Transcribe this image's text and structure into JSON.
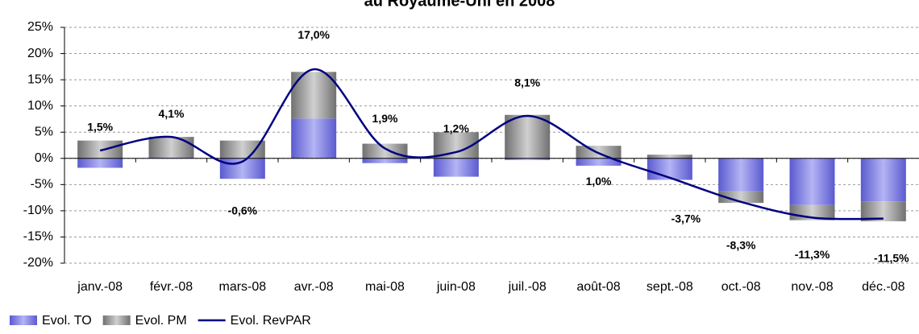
{
  "chart_data": {
    "type": "bar_line",
    "title": "au Royaume-Uni en 2008",
    "categories": [
      "janv.-08",
      "févr.-08",
      "mars-08",
      "avr.-08",
      "mai-08",
      "juin-08",
      "juil.-08",
      "août-08",
      "sept.-08",
      "oct.-08",
      "nov.-08",
      "déc.-08"
    ],
    "series": [
      {
        "name": "Evol. TO",
        "color": "#8c8ce8",
        "kind": "bar",
        "values": [
          -1.8,
          0.2,
          -3.9,
          7.6,
          -0.9,
          -3.5,
          -0.3,
          -1.4,
          -4.1,
          -6.3,
          -8.9,
          -8.2
        ]
      },
      {
        "name": "Evol. PM",
        "color": "#a6a6a6",
        "kind": "bar",
        "values": [
          3.4,
          3.9,
          3.4,
          8.9,
          2.8,
          5.0,
          8.3,
          2.4,
          0.7,
          -2.2,
          -2.9,
          -3.8
        ]
      },
      {
        "name": "Evol. RevPAR",
        "color": "#000080",
        "kind": "line",
        "values": [
          1.5,
          4.1,
          -0.6,
          17.0,
          1.9,
          1.2,
          8.1,
          1.0,
          -3.7,
          -8.3,
          -11.3,
          -11.5
        ],
        "value_labels": [
          "1,5%",
          "4,1%",
          "-0,6%",
          "17,0%",
          "1,9%",
          "1,2%",
          "8,1%",
          "1,0%",
          "-3,7%",
          "-8,3%",
          "-11,3%",
          "-11,5%"
        ]
      }
    ],
    "ylim": [
      -20,
      25
    ],
    "yticks": [
      {
        "value": -20,
        "label": "-20%"
      },
      {
        "value": -15,
        "label": "-15%"
      },
      {
        "value": -10,
        "label": "-10%"
      },
      {
        "value": -5,
        "label": "-5%"
      },
      {
        "value": 0,
        "label": "0%"
      },
      {
        "value": 5,
        "label": "5%"
      },
      {
        "value": 10,
        "label": "10%"
      },
      {
        "value": 15,
        "label": "15%"
      },
      {
        "value": 20,
        "label": "20%"
      },
      {
        "value": 25,
        "label": "25%"
      }
    ],
    "grid": true
  }
}
